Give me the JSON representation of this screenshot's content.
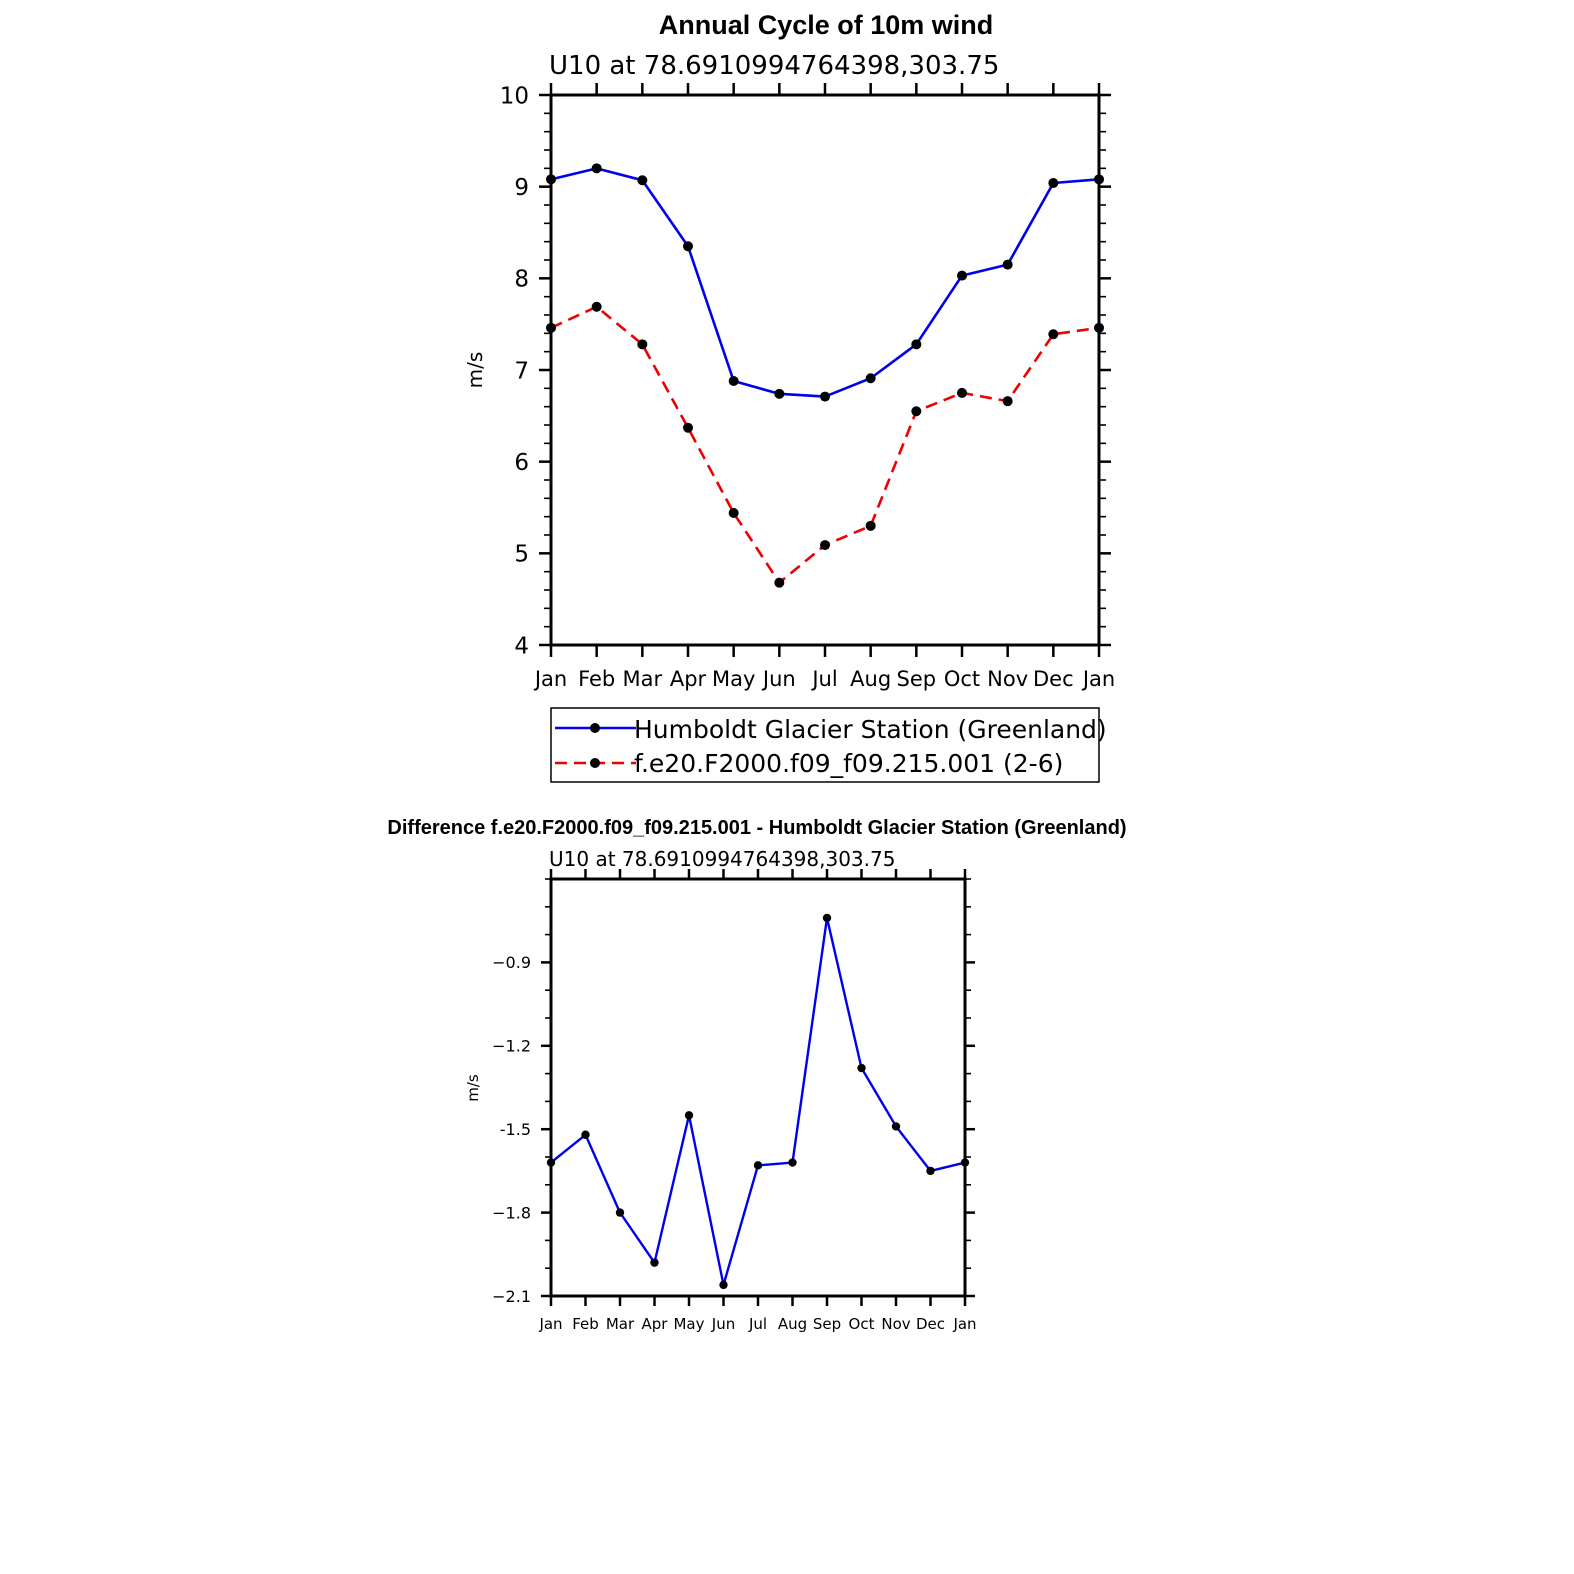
{
  "chart_data": [
    {
      "type": "line",
      "title": "Annual Cycle of 10m wind",
      "subtitle": "U10  at  78.6910994764398,303.75",
      "xlabel": "",
      "ylabel": "m/s",
      "categories": [
        "Jan",
        "Feb",
        "Mar",
        "Apr",
        "May",
        "Jun",
        "Jul",
        "Aug",
        "Sep",
        "Oct",
        "Nov",
        "Dec",
        "Jan"
      ],
      "ylim": [
        4,
        10
      ],
      "yticks": [
        "4",
        "5",
        "6",
        "7",
        "8",
        "9",
        "10"
      ],
      "grid": false,
      "legend_position": "bottom",
      "series": [
        {
          "name": "Humboldt Glacier Station (Greenland)",
          "color": "#0000ee",
          "style": "solid",
          "values": [
            9.08,
            9.2,
            9.07,
            8.35,
            6.88,
            6.74,
            6.71,
            6.91,
            7.28,
            8.03,
            8.15,
            9.04,
            9.08
          ]
        },
        {
          "name": "f.e20.F2000.f09_f09.215.001 (2-6)",
          "color": "#ee0000",
          "style": "dashed",
          "values": [
            7.46,
            7.69,
            7.28,
            6.37,
            5.44,
            4.68,
            5.09,
            5.3,
            6.55,
            6.75,
            6.66,
            7.39,
            7.46
          ]
        }
      ]
    },
    {
      "type": "line",
      "title": "Difference f.e20.F2000.f09_f09.215.001 - Humboldt Glacier Station (Greenland)",
      "subtitle": "U10  at  78.6910994764398,303.75",
      "xlabel": "",
      "ylabel": "m/s",
      "categories": [
        "Jan",
        "Feb",
        "Mar",
        "Apr",
        "May",
        "Jun",
        "Jul",
        "Aug",
        "Sep",
        "Oct",
        "Nov",
        "Dec",
        "Jan"
      ],
      "ylim": [
        -2.1,
        -0.6
      ],
      "yticks": [
        "−2.1",
        "−1.8",
        "-1.5",
        "−1.2",
        "−0.9"
      ],
      "ytick_values": [
        -2.1,
        -1.8,
        -1.5,
        -1.2,
        -0.9
      ],
      "grid": false,
      "series": [
        {
          "name": "Difference",
          "color": "#0000ee",
          "style": "solid",
          "values": [
            -1.62,
            -1.52,
            -1.8,
            -1.98,
            -1.45,
            -2.06,
            -1.63,
            -1.62,
            -0.74,
            -1.28,
            -1.49,
            -1.65,
            -1.62
          ]
        }
      ]
    }
  ]
}
